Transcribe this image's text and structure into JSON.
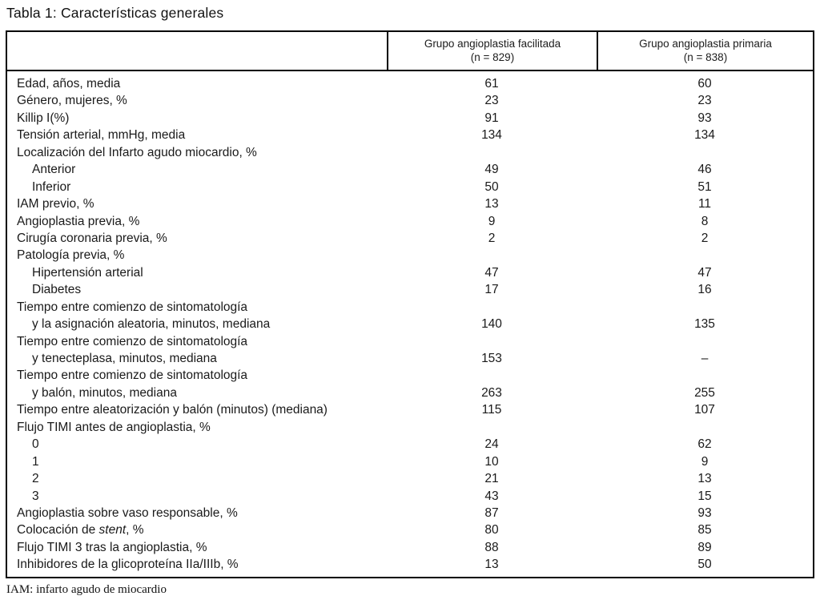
{
  "page": {
    "title": "Tabla 1: Características generales",
    "footnote": "IAM: infarto agudo de miocardio"
  },
  "table": {
    "columns": [
      {
        "line1": "Grupo angioplastia facilitada",
        "line2": "(n = 829)"
      },
      {
        "line1": "Grupo angioplastia primaria",
        "line2": "(n = 838)"
      }
    ],
    "rows": [
      {
        "label": "Edad, años, media",
        "v1": "61",
        "v2": "60"
      },
      {
        "label": "Género, mujeres, %",
        "v1": "23",
        "v2": "23"
      },
      {
        "label": "Killip I(%)",
        "v1": "91",
        "v2": "93"
      },
      {
        "label": "Tensión arterial, mmHg, media",
        "v1": "134",
        "v2": "134"
      },
      {
        "label": "Localización del Infarto agudo miocardio, %",
        "v1": "",
        "v2": ""
      },
      {
        "label": "Anterior",
        "indent": true,
        "v1": "49",
        "v2": "46"
      },
      {
        "label": "Inferior",
        "indent": true,
        "v1": "50",
        "v2": "51"
      },
      {
        "label": "IAM previo, %",
        "v1": "13",
        "v2": "11"
      },
      {
        "label": "Angioplastia previa, %",
        "v1": "9",
        "v2": "8"
      },
      {
        "label": "Cirugía coronaria previa, %",
        "v1": "2",
        "v2": "2"
      },
      {
        "label": "Patología previa, %",
        "v1": "",
        "v2": ""
      },
      {
        "label": "Hipertensión arterial",
        "indent": true,
        "v1": "47",
        "v2": "47"
      },
      {
        "label": "Diabetes",
        "indent": true,
        "v1": "17",
        "v2": "16"
      },
      {
        "label": "Tiempo entre comienzo de sintomatología",
        "v1": "",
        "v2": ""
      },
      {
        "label": "y la asignación aleatoria, minutos, mediana",
        "indent": true,
        "v1": "140",
        "v2": "135"
      },
      {
        "label": "Tiempo entre comienzo de sintomatología",
        "v1": "",
        "v2": ""
      },
      {
        "label": "y tenecteplasa, minutos, mediana",
        "indent": true,
        "v1": "153",
        "v2": "–"
      },
      {
        "label": "Tiempo entre comienzo de sintomatología",
        "v1": "",
        "v2": ""
      },
      {
        "label": "y balón, minutos, mediana",
        "indent": true,
        "v1": "263",
        "v2": "255"
      },
      {
        "label": "Tiempo entre aleatorización y balón (minutos) (mediana)",
        "v1": "115",
        "v2": "107"
      },
      {
        "label": "Flujo TIMI antes de angioplastia, %",
        "v1": "",
        "v2": ""
      },
      {
        "label": "0",
        "indent": true,
        "v1": "24",
        "v2": "62"
      },
      {
        "label": "1",
        "indent": true,
        "v1": "10",
        "v2": "9"
      },
      {
        "label": "2",
        "indent": true,
        "v1": "21",
        "v2": "13"
      },
      {
        "label": "3",
        "indent": true,
        "v1": "43",
        "v2": "15"
      },
      {
        "label": "Angioplastia sobre vaso responsable, %",
        "v1": "87",
        "v2": "93"
      },
      {
        "label": "Colocación de stent, %",
        "italic": "stent",
        "v1": "80",
        "v2": "85"
      },
      {
        "label": "Flujo TIMI 3 tras la angioplastia, %",
        "v1": "88",
        "v2": "89"
      },
      {
        "label": "Inhibidores de la glicoproteína IIa/IIIb, %",
        "v1": "13",
        "v2": "50"
      }
    ]
  }
}
